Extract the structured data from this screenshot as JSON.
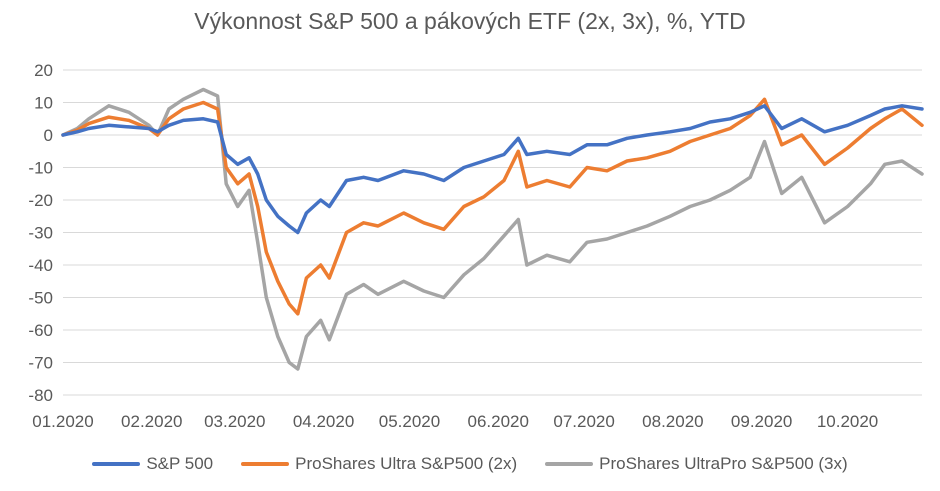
{
  "chart_data": {
    "type": "line",
    "title": "Výkonnost S&P 500 a pákových ETF (2x, 3x), %, YTD",
    "xlabel": "",
    "ylabel": "",
    "ylim": [
      -80,
      20
    ],
    "yticks": [
      20,
      10,
      0,
      -10,
      -20,
      -30,
      -40,
      -50,
      -60,
      -70,
      -80
    ],
    "xlim": [
      "2020-01-01",
      "2020-10-27"
    ],
    "xticks": [
      {
        "date": "2020-01-01",
        "label": "01.2020"
      },
      {
        "date": "2020-02-01",
        "label": "02.2020"
      },
      {
        "date": "2020-03-01",
        "label": "03.2020"
      },
      {
        "date": "2020-04-01",
        "label": "04.2020"
      },
      {
        "date": "2020-05-01",
        "label": "05.2020"
      },
      {
        "date": "2020-06-01",
        "label": "06.2020"
      },
      {
        "date": "2020-07-01",
        "label": "07.2020"
      },
      {
        "date": "2020-08-01",
        "label": "08.2020"
      },
      {
        "date": "2020-09-01",
        "label": "09.2020"
      },
      {
        "date": "2020-10-01",
        "label": "10.2020"
      }
    ],
    "grid": "horizontal",
    "legend_position": "bottom",
    "series": [
      {
        "name": "S&P 500",
        "color": "#4472C4",
        "points": [
          [
            "2020-01-01",
            0
          ],
          [
            "2020-01-06",
            1
          ],
          [
            "2020-01-10",
            2
          ],
          [
            "2020-01-17",
            3
          ],
          [
            "2020-01-24",
            2.5
          ],
          [
            "2020-01-31",
            2
          ],
          [
            "2020-02-03",
            1
          ],
          [
            "2020-02-07",
            3
          ],
          [
            "2020-02-12",
            4.5
          ],
          [
            "2020-02-19",
            5
          ],
          [
            "2020-02-24",
            4
          ],
          [
            "2020-02-27",
            -6
          ],
          [
            "2020-03-02",
            -9
          ],
          [
            "2020-03-06",
            -7
          ],
          [
            "2020-03-09",
            -12
          ],
          [
            "2020-03-12",
            -20
          ],
          [
            "2020-03-16",
            -25
          ],
          [
            "2020-03-20",
            -28
          ],
          [
            "2020-03-23",
            -30
          ],
          [
            "2020-03-26",
            -24
          ],
          [
            "2020-03-31",
            -20
          ],
          [
            "2020-04-03",
            -22
          ],
          [
            "2020-04-09",
            -14
          ],
          [
            "2020-04-15",
            -13
          ],
          [
            "2020-04-20",
            -14
          ],
          [
            "2020-04-29",
            -11
          ],
          [
            "2020-05-06",
            -12
          ],
          [
            "2020-05-13",
            -14
          ],
          [
            "2020-05-20",
            -10
          ],
          [
            "2020-05-27",
            -8
          ],
          [
            "2020-06-03",
            -6
          ],
          [
            "2020-06-08",
            -1
          ],
          [
            "2020-06-11",
            -6
          ],
          [
            "2020-06-18",
            -5
          ],
          [
            "2020-06-26",
            -6
          ],
          [
            "2020-07-02",
            -3
          ],
          [
            "2020-07-09",
            -3
          ],
          [
            "2020-07-16",
            -1
          ],
          [
            "2020-07-23",
            0
          ],
          [
            "2020-07-31",
            1
          ],
          [
            "2020-08-07",
            2
          ],
          [
            "2020-08-14",
            4
          ],
          [
            "2020-08-21",
            5
          ],
          [
            "2020-08-28",
            7
          ],
          [
            "2020-09-02",
            9
          ],
          [
            "2020-09-08",
            2
          ],
          [
            "2020-09-15",
            5
          ],
          [
            "2020-09-23",
            1
          ],
          [
            "2020-10-01",
            3
          ],
          [
            "2020-10-09",
            6
          ],
          [
            "2020-10-14",
            8
          ],
          [
            "2020-10-20",
            9
          ],
          [
            "2020-10-27",
            8
          ]
        ]
      },
      {
        "name": "ProShares Ultra S&P500 (2x)",
        "color": "#ED7D31",
        "points": [
          [
            "2020-01-01",
            0
          ],
          [
            "2020-01-06",
            1.5
          ],
          [
            "2020-01-10",
            3.5
          ],
          [
            "2020-01-17",
            5.5
          ],
          [
            "2020-01-24",
            4.5
          ],
          [
            "2020-01-31",
            2
          ],
          [
            "2020-02-03",
            0
          ],
          [
            "2020-02-07",
            5
          ],
          [
            "2020-02-12",
            8
          ],
          [
            "2020-02-19",
            10
          ],
          [
            "2020-02-24",
            8
          ],
          [
            "2020-02-27",
            -10
          ],
          [
            "2020-03-02",
            -15
          ],
          [
            "2020-03-06",
            -12
          ],
          [
            "2020-03-09",
            -22
          ],
          [
            "2020-03-12",
            -36
          ],
          [
            "2020-03-16",
            -45
          ],
          [
            "2020-03-20",
            -52
          ],
          [
            "2020-03-23",
            -55
          ],
          [
            "2020-03-26",
            -44
          ],
          [
            "2020-03-31",
            -40
          ],
          [
            "2020-04-03",
            -44
          ],
          [
            "2020-04-09",
            -30
          ],
          [
            "2020-04-15",
            -27
          ],
          [
            "2020-04-20",
            -28
          ],
          [
            "2020-04-29",
            -24
          ],
          [
            "2020-05-06",
            -27
          ],
          [
            "2020-05-13",
            -29
          ],
          [
            "2020-05-20",
            -22
          ],
          [
            "2020-05-27",
            -19
          ],
          [
            "2020-06-03",
            -14
          ],
          [
            "2020-06-08",
            -5
          ],
          [
            "2020-06-11",
            -16
          ],
          [
            "2020-06-18",
            -14
          ],
          [
            "2020-06-26",
            -16
          ],
          [
            "2020-07-02",
            -10
          ],
          [
            "2020-07-09",
            -11
          ],
          [
            "2020-07-16",
            -8
          ],
          [
            "2020-07-23",
            -7
          ],
          [
            "2020-07-31",
            -5
          ],
          [
            "2020-08-07",
            -2
          ],
          [
            "2020-08-14",
            0
          ],
          [
            "2020-08-21",
            2
          ],
          [
            "2020-08-28",
            6
          ],
          [
            "2020-09-02",
            11
          ],
          [
            "2020-09-08",
            -3
          ],
          [
            "2020-09-15",
            0
          ],
          [
            "2020-09-23",
            -9
          ],
          [
            "2020-10-01",
            -4
          ],
          [
            "2020-10-09",
            2
          ],
          [
            "2020-10-14",
            5
          ],
          [
            "2020-10-20",
            8
          ],
          [
            "2020-10-27",
            3
          ]
        ]
      },
      {
        "name": "ProShares UltraPro S&P500 (3x)",
        "color": "#A5A5A5",
        "points": [
          [
            "2020-01-01",
            0
          ],
          [
            "2020-01-06",
            2
          ],
          [
            "2020-01-10",
            5
          ],
          [
            "2020-01-17",
            9
          ],
          [
            "2020-01-24",
            7
          ],
          [
            "2020-01-31",
            3
          ],
          [
            "2020-02-03",
            0
          ],
          [
            "2020-02-07",
            8
          ],
          [
            "2020-02-12",
            11
          ],
          [
            "2020-02-19",
            14
          ],
          [
            "2020-02-24",
            12
          ],
          [
            "2020-02-27",
            -15
          ],
          [
            "2020-03-02",
            -22
          ],
          [
            "2020-03-06",
            -17
          ],
          [
            "2020-03-09",
            -33
          ],
          [
            "2020-03-12",
            -50
          ],
          [
            "2020-03-16",
            -62
          ],
          [
            "2020-03-20",
            -70
          ],
          [
            "2020-03-23",
            -72
          ],
          [
            "2020-03-26",
            -62
          ],
          [
            "2020-03-31",
            -57
          ],
          [
            "2020-04-03",
            -63
          ],
          [
            "2020-04-09",
            -49
          ],
          [
            "2020-04-15",
            -46
          ],
          [
            "2020-04-20",
            -49
          ],
          [
            "2020-04-29",
            -45
          ],
          [
            "2020-05-06",
            -48
          ],
          [
            "2020-05-13",
            -50
          ],
          [
            "2020-05-20",
            -43
          ],
          [
            "2020-05-27",
            -38
          ],
          [
            "2020-06-03",
            -31
          ],
          [
            "2020-06-08",
            -26
          ],
          [
            "2020-06-11",
            -40
          ],
          [
            "2020-06-18",
            -37
          ],
          [
            "2020-06-26",
            -39
          ],
          [
            "2020-07-02",
            -33
          ],
          [
            "2020-07-09",
            -32
          ],
          [
            "2020-07-16",
            -30
          ],
          [
            "2020-07-23",
            -28
          ],
          [
            "2020-07-31",
            -25
          ],
          [
            "2020-08-07",
            -22
          ],
          [
            "2020-08-14",
            -20
          ],
          [
            "2020-08-21",
            -17
          ],
          [
            "2020-08-28",
            -13
          ],
          [
            "2020-09-02",
            -2
          ],
          [
            "2020-09-08",
            -18
          ],
          [
            "2020-09-15",
            -13
          ],
          [
            "2020-09-23",
            -27
          ],
          [
            "2020-10-01",
            -22
          ],
          [
            "2020-10-09",
            -15
          ],
          [
            "2020-10-14",
            -9
          ],
          [
            "2020-10-20",
            -8
          ],
          [
            "2020-10-27",
            -12
          ]
        ]
      }
    ]
  }
}
